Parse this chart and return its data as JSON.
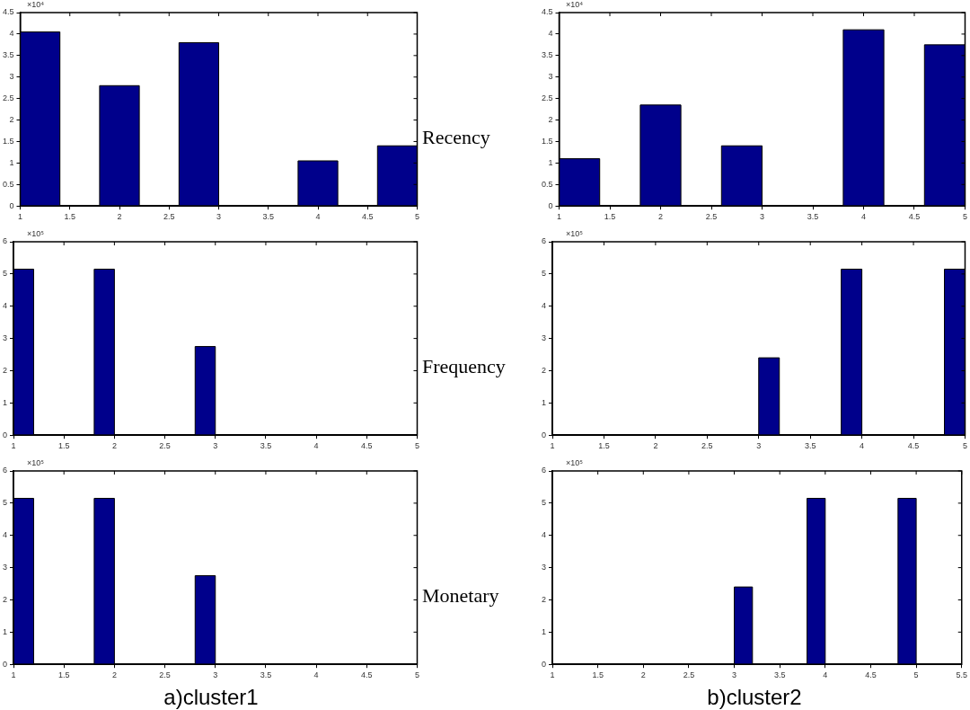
{
  "chart_data": [
    {
      "type": "histogram",
      "bins": [
        1,
        1.4,
        1.8,
        2.2,
        2.6,
        3.0,
        3.8,
        4.2,
        4.6,
        5
      ],
      "values": [
        4.05,
        0,
        2.8,
        0,
        3.8,
        0,
        1.05,
        0,
        1.4
      ],
      "color": "#00008b",
      "xlim": [
        1,
        5
      ],
      "xticks": [
        1,
        1.5,
        2,
        2.5,
        3,
        3.5,
        4,
        4.5,
        5
      ],
      "ylim": [
        0,
        4.5
      ],
      "yticks": [
        0,
        0.5,
        1,
        1.5,
        2,
        2.5,
        3,
        3.5,
        4,
        4.5
      ],
      "annotations": [
        "×10⁴"
      ]
    },
    {
      "type": "histogram",
      "bins": [
        1,
        1.4,
        1.8,
        2.2,
        2.6,
        3.0,
        3.8,
        4.2,
        4.6,
        5
      ],
      "values": [
        1.1,
        0,
        2.35,
        0,
        1.4,
        0,
        4.1,
        0,
        3.75
      ],
      "color": "#00008b",
      "xlim": [
        1,
        5
      ],
      "xticks": [
        1,
        1.5,
        2,
        2.5,
        3,
        3.5,
        4,
        4.5,
        5
      ],
      "ylim": [
        0,
        4.5
      ],
      "yticks": [
        0,
        0.5,
        1,
        1.5,
        2,
        2.5,
        3,
        3.5,
        4,
        4.5
      ],
      "ylabel": "Recency",
      "annotations": [
        "×10⁴"
      ]
    },
    {
      "type": "histogram",
      "bins": [
        1,
        1.2,
        1.8,
        2,
        2.8,
        3
      ],
      "values": [
        5.15,
        0,
        5.15,
        0,
        2.75
      ],
      "color": "#00008b",
      "xlim": [
        1,
        5
      ],
      "xticks": [
        1,
        1.5,
        2,
        2.5,
        3,
        3.5,
        4,
        4.5,
        5
      ],
      "ylim": [
        0,
        6
      ],
      "yticks": [
        0,
        1,
        2,
        3,
        4,
        5,
        6
      ],
      "annotations": [
        "×10⁵"
      ]
    },
    {
      "type": "histogram",
      "bins": [
        3,
        3.2,
        3.8,
        4,
        4.8,
        5
      ],
      "values": [
        2.4,
        0,
        5.15,
        0,
        5.15
      ],
      "color": "#00008b",
      "xlim": [
        1,
        5
      ],
      "xticks": [
        1,
        1.5,
        2,
        2.5,
        3,
        3.5,
        4,
        4.5,
        5
      ],
      "ylim": [
        0,
        6
      ],
      "yticks": [
        0,
        1,
        2,
        3,
        4,
        5,
        6
      ],
      "ylabel": "Frequency",
      "annotations": [
        "×10⁵"
      ]
    },
    {
      "type": "histogram",
      "bins": [
        1,
        1.2,
        1.8,
        2,
        2.8,
        3
      ],
      "values": [
        5.15,
        0,
        5.15,
        0,
        2.75
      ],
      "color": "#00008b",
      "xlim": [
        1,
        5
      ],
      "xticks": [
        1,
        1.5,
        2,
        2.5,
        3,
        3.5,
        4,
        4.5,
        5
      ],
      "ylim": [
        0,
        6
      ],
      "yticks": [
        0,
        1,
        2,
        3,
        4,
        5,
        6
      ],
      "xlabel": "a)cluster1",
      "annotations": [
        "×10⁵"
      ]
    },
    {
      "type": "histogram",
      "bins": [
        3,
        3.2,
        3.8,
        4,
        4.8,
        5
      ],
      "values": [
        2.4,
        0,
        5.15,
        0,
        5.15
      ],
      "color": "#00008b",
      "xlim": [
        1,
        5.5
      ],
      "xticks": [
        1,
        1.5,
        2,
        2.5,
        3,
        3.5,
        4,
        4.5,
        5,
        5.5
      ],
      "ylim": [
        0,
        6
      ],
      "yticks": [
        0,
        1,
        2,
        3,
        4,
        5,
        6
      ],
      "ylabel": "Monetary",
      "xlabel": "b)cluster2",
      "annotations": [
        "×10⁵"
      ]
    }
  ]
}
